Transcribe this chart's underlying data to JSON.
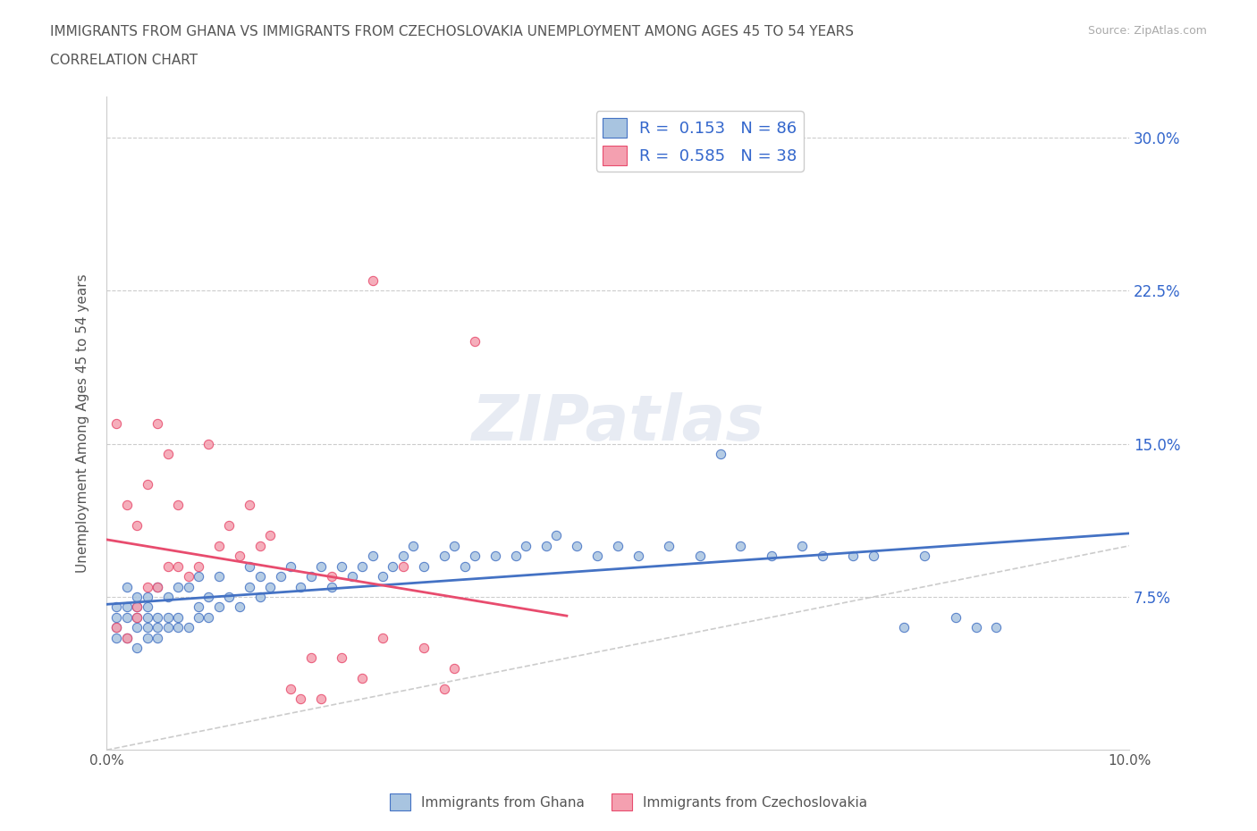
{
  "title_line1": "IMMIGRANTS FROM GHANA VS IMMIGRANTS FROM CZECHOSLOVAKIA UNEMPLOYMENT AMONG AGES 45 TO 54 YEARS",
  "title_line2": "CORRELATION CHART",
  "source_text": "Source: ZipAtlas.com",
  "xlabel": "",
  "ylabel": "Unemployment Among Ages 45 to 54 years",
  "xlim": [
    0.0,
    0.1
  ],
  "ylim": [
    0.0,
    0.32
  ],
  "xticks": [
    0.0,
    0.02,
    0.04,
    0.06,
    0.08,
    0.1
  ],
  "xtick_labels": [
    "0.0%",
    "",
    "",
    "",
    "",
    "10.0%"
  ],
  "ytick_labels": [
    "7.5%",
    "15.0%",
    "22.5%",
    "30.0%"
  ],
  "ytick_positions": [
    0.075,
    0.15,
    0.225,
    0.3
  ],
  "ghana_R": 0.153,
  "ghana_N": 86,
  "czech_R": 0.585,
  "czech_N": 38,
  "ghana_color": "#a8c4e0",
  "czech_color": "#f4a0b0",
  "ghana_line_color": "#4472c4",
  "czech_line_color": "#e84c6e",
  "diagonal_color": "#cccccc",
  "legend_color": "#3366cc",
  "background_color": "#ffffff",
  "ghana_x": [
    0.001,
    0.001,
    0.001,
    0.001,
    0.002,
    0.002,
    0.002,
    0.002,
    0.003,
    0.003,
    0.003,
    0.003,
    0.003,
    0.004,
    0.004,
    0.004,
    0.004,
    0.004,
    0.005,
    0.005,
    0.005,
    0.005,
    0.006,
    0.006,
    0.006,
    0.007,
    0.007,
    0.007,
    0.008,
    0.008,
    0.009,
    0.009,
    0.009,
    0.01,
    0.01,
    0.011,
    0.011,
    0.012,
    0.013,
    0.014,
    0.014,
    0.015,
    0.015,
    0.016,
    0.017,
    0.018,
    0.019,
    0.02,
    0.021,
    0.022,
    0.023,
    0.024,
    0.025,
    0.026,
    0.027,
    0.028,
    0.029,
    0.03,
    0.031,
    0.033,
    0.034,
    0.035,
    0.036,
    0.038,
    0.04,
    0.041,
    0.043,
    0.044,
    0.046,
    0.048,
    0.05,
    0.052,
    0.055,
    0.058,
    0.06,
    0.062,
    0.065,
    0.068,
    0.07,
    0.073,
    0.075,
    0.078,
    0.08,
    0.083,
    0.085,
    0.087
  ],
  "ghana_y": [
    0.055,
    0.06,
    0.065,
    0.07,
    0.055,
    0.065,
    0.07,
    0.08,
    0.05,
    0.06,
    0.065,
    0.07,
    0.075,
    0.055,
    0.06,
    0.065,
    0.07,
    0.075,
    0.055,
    0.06,
    0.065,
    0.08,
    0.06,
    0.065,
    0.075,
    0.06,
    0.065,
    0.08,
    0.06,
    0.08,
    0.065,
    0.07,
    0.085,
    0.065,
    0.075,
    0.07,
    0.085,
    0.075,
    0.07,
    0.08,
    0.09,
    0.075,
    0.085,
    0.08,
    0.085,
    0.09,
    0.08,
    0.085,
    0.09,
    0.08,
    0.09,
    0.085,
    0.09,
    0.095,
    0.085,
    0.09,
    0.095,
    0.1,
    0.09,
    0.095,
    0.1,
    0.09,
    0.095,
    0.095,
    0.095,
    0.1,
    0.1,
    0.105,
    0.1,
    0.095,
    0.1,
    0.095,
    0.1,
    0.095,
    0.145,
    0.1,
    0.095,
    0.1,
    0.095,
    0.095,
    0.095,
    0.06,
    0.095,
    0.065,
    0.06,
    0.06
  ],
  "czech_x": [
    0.001,
    0.001,
    0.002,
    0.002,
    0.003,
    0.003,
    0.003,
    0.004,
    0.004,
    0.005,
    0.005,
    0.006,
    0.006,
    0.007,
    0.007,
    0.008,
    0.009,
    0.01,
    0.011,
    0.012,
    0.013,
    0.014,
    0.015,
    0.016,
    0.018,
    0.019,
    0.02,
    0.021,
    0.022,
    0.023,
    0.025,
    0.026,
    0.027,
    0.029,
    0.031,
    0.033,
    0.034,
    0.036
  ],
  "czech_y": [
    0.06,
    0.16,
    0.055,
    0.12,
    0.065,
    0.07,
    0.11,
    0.08,
    0.13,
    0.08,
    0.16,
    0.09,
    0.145,
    0.09,
    0.12,
    0.085,
    0.09,
    0.15,
    0.1,
    0.11,
    0.095,
    0.12,
    0.1,
    0.105,
    0.03,
    0.025,
    0.045,
    0.025,
    0.085,
    0.045,
    0.035,
    0.23,
    0.055,
    0.09,
    0.05,
    0.03,
    0.04,
    0.2
  ],
  "watermark": "ZIPatlas",
  "watermark_color": "#d0d8e8"
}
